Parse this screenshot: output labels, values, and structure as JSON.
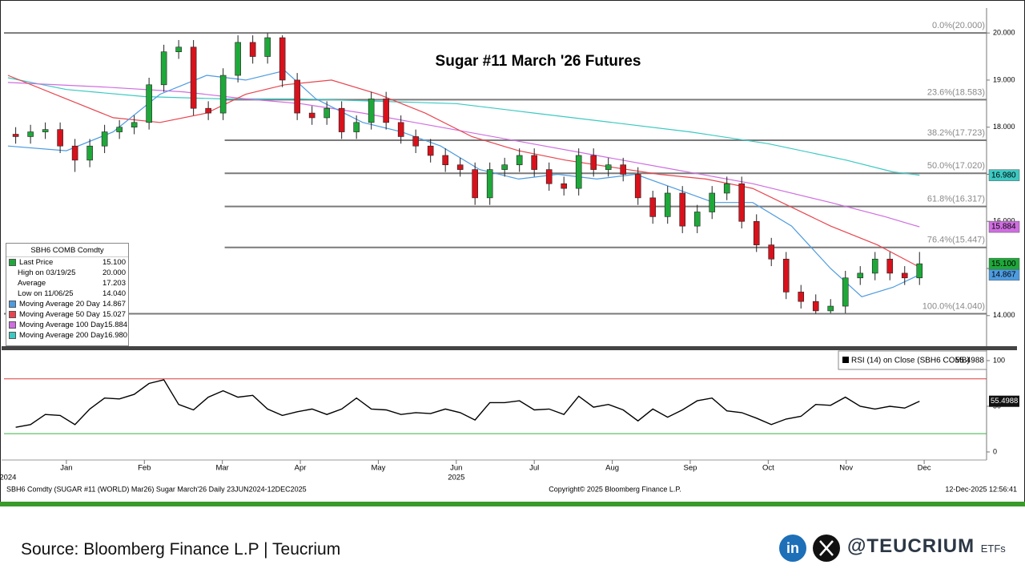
{
  "chart_data": [
    {
      "type": "candlestick",
      "title": "Sugar #11 March '26 Futures",
      "x": [
        0.35,
        0.54,
        0.73,
        0.92,
        1.11,
        1.3,
        1.49,
        1.68,
        1.87,
        2.06,
        2.25,
        2.44,
        2.63,
        2.82,
        3.01,
        3.2,
        3.39,
        3.58,
        3.77,
        3.96,
        4.15,
        4.34,
        4.53,
        4.72,
        4.91,
        5.1,
        5.29,
        5.48,
        5.67,
        5.86,
        6.05,
        6.24,
        6.43,
        6.62,
        6.81,
        7.0,
        7.19,
        7.38,
        7.57,
        7.76,
        7.95,
        8.14,
        8.33,
        8.52,
        8.71,
        8.9,
        9.09,
        9.28,
        9.47,
        9.66,
        9.85,
        10.04,
        10.23,
        10.42,
        10.61,
        10.8,
        10.99,
        11.18,
        11.37,
        11.56,
        11.75,
        11.94
      ],
      "open": [
        17.85,
        17.8,
        17.9,
        17.95,
        17.6,
        17.3,
        17.6,
        17.9,
        18.0,
        18.1,
        18.9,
        19.6,
        19.7,
        18.4,
        18.3,
        19.1,
        19.8,
        19.5,
        19.9,
        19.0,
        18.3,
        18.2,
        18.4,
        17.9,
        18.1,
        18.6,
        18.1,
        17.8,
        17.6,
        17.4,
        17.2,
        17.1,
        16.5,
        17.1,
        17.2,
        17.4,
        17.1,
        16.8,
        16.7,
        17.4,
        17.1,
        17.2,
        17.0,
        16.5,
        16.1,
        16.6,
        15.9,
        16.2,
        16.6,
        16.8,
        16.0,
        15.5,
        15.2,
        14.5,
        14.3,
        14.1,
        14.2,
        14.8,
        14.9,
        15.2,
        14.9,
        14.8
      ],
      "high": [
        18.0,
        18.05,
        18.1,
        18.1,
        17.75,
        17.75,
        18.05,
        18.15,
        18.25,
        19.05,
        19.75,
        19.85,
        19.85,
        18.55,
        19.25,
        19.95,
        19.95,
        20.0,
        19.95,
        19.15,
        18.45,
        18.55,
        18.55,
        18.25,
        18.75,
        18.75,
        18.25,
        17.95,
        17.75,
        17.55,
        17.35,
        17.25,
        17.25,
        17.35,
        17.55,
        17.55,
        17.25,
        16.95,
        17.55,
        17.55,
        17.35,
        17.35,
        17.15,
        16.65,
        16.75,
        16.75,
        16.35,
        16.75,
        16.95,
        16.95,
        16.15,
        15.65,
        15.35,
        14.65,
        14.45,
        14.35,
        14.95,
        15.05,
        15.35,
        15.35,
        15.05,
        15.35
      ],
      "low": [
        17.65,
        17.65,
        17.75,
        17.45,
        17.05,
        17.15,
        17.45,
        17.75,
        17.85,
        17.95,
        18.75,
        19.45,
        18.25,
        18.15,
        18.15,
        18.95,
        19.35,
        19.35,
        18.85,
        18.15,
        18.05,
        18.05,
        17.75,
        17.75,
        17.95,
        17.95,
        17.65,
        17.45,
        17.25,
        17.05,
        16.95,
        16.35,
        16.35,
        16.95,
        17.05,
        16.95,
        16.65,
        16.55,
        16.55,
        16.95,
        16.95,
        16.85,
        16.35,
        15.95,
        15.95,
        15.75,
        15.75,
        16.05,
        16.45,
        15.85,
        15.35,
        15.05,
        14.35,
        14.15,
        14.04,
        14.05,
        14.05,
        14.65,
        14.75,
        14.75,
        14.65,
        14.65
      ],
      "close": [
        17.8,
        17.9,
        17.95,
        17.6,
        17.3,
        17.6,
        17.9,
        18.0,
        18.1,
        18.9,
        19.6,
        19.7,
        18.4,
        18.3,
        19.1,
        19.8,
        19.5,
        19.9,
        19.0,
        18.3,
        18.2,
        18.4,
        17.9,
        18.1,
        18.6,
        18.1,
        17.8,
        17.6,
        17.4,
        17.2,
        17.1,
        16.5,
        17.1,
        17.2,
        17.4,
        17.1,
        16.8,
        16.7,
        17.4,
        17.1,
        17.2,
        17.0,
        16.5,
        16.1,
        16.6,
        15.9,
        16.2,
        16.6,
        16.8,
        16.0,
        15.5,
        15.2,
        14.5,
        14.3,
        14.1,
        14.2,
        14.8,
        14.9,
        15.2,
        14.9,
        14.8,
        15.1
      ],
      "color_up": "#1fa83a",
      "color_down": "#d8121c",
      "last_tag": "15.100",
      "xlim": [
        0.2,
        12.8
      ],
      "xticks": [
        {
          "value": 1,
          "label": "Jan"
        },
        {
          "value": 2,
          "label": "Feb"
        },
        {
          "value": 3,
          "label": "Mar"
        },
        {
          "value": 4,
          "label": "Apr"
        },
        {
          "value": 5,
          "label": "May"
        },
        {
          "value": 6,
          "label": "Jun"
        },
        {
          "value": 7,
          "label": "Jul"
        },
        {
          "value": 8,
          "label": "Aug"
        },
        {
          "value": 9,
          "label": "Sep"
        },
        {
          "value": 10,
          "label": "Oct"
        },
        {
          "value": 11,
          "label": "Nov"
        },
        {
          "value": 12,
          "label": "Dec"
        }
      ],
      "x_year_ticks": [
        {
          "value": 0.25,
          "label": "2024"
        },
        {
          "value": 6,
          "label": "2025"
        }
      ],
      "ylim": [
        13.35,
        20.53
      ],
      "yticks": [
        {
          "value": 14,
          "label": "14.000"
        },
        {
          "value": 15,
          "label": "15.000"
        },
        {
          "value": 16,
          "label": "16.000"
        },
        {
          "value": 17,
          "label": "17.000"
        },
        {
          "value": 18,
          "label": "18.000"
        },
        {
          "value": 19,
          "label": "19.000"
        },
        {
          "value": 20,
          "label": "20.000"
        }
      ],
      "fib_levels": [
        {
          "value": 20.0,
          "label": "0.0%(20.000)"
        },
        {
          "value": 18.583,
          "label": "23.6%(18.583)"
        },
        {
          "value": 17.723,
          "label": "38.2%(17.723)"
        },
        {
          "value": 17.02,
          "label": "50.0%(17.020)"
        },
        {
          "value": 16.317,
          "label": "61.8%(16.317)"
        },
        {
          "value": 15.447,
          "label": "76.4%(15.447)"
        },
        {
          "value": 14.04,
          "label": "100.0%(14.040)"
        }
      ],
      "fib_start": 3.03,
      "overlays": [
        {
          "name": "Moving Average 200 Day",
          "color": "#3cc9c2",
          "tag": "16.980",
          "x": [
            0.25,
            1.0,
            2.0,
            3.0,
            4.0,
            5.0,
            6.0,
            7.0,
            8.0,
            9.0,
            10.0,
            11.0,
            11.6,
            11.94
          ],
          "values": [
            19.05,
            18.8,
            18.65,
            18.6,
            18.6,
            18.55,
            18.5,
            18.3,
            18.1,
            17.9,
            17.65,
            17.3,
            17.05,
            16.98
          ]
        },
        {
          "name": "Moving Average 100 Day",
          "color": "#cf6ee0",
          "tag": "15.884",
          "x": [
            0.25,
            1.5,
            2.5,
            3.3,
            4.0,
            4.8,
            5.8,
            6.8,
            7.8,
            8.8,
            9.8,
            10.8,
            11.5,
            11.94
          ],
          "values": [
            18.95,
            18.85,
            18.75,
            18.6,
            18.5,
            18.3,
            18.0,
            17.7,
            17.4,
            17.1,
            16.8,
            16.4,
            16.1,
            15.884
          ]
        },
        {
          "name": "Moving Average 50 Day",
          "color": "#e8454e",
          "tag": "15.027",
          "x": [
            0.25,
            1.0,
            1.6,
            2.2,
            2.8,
            3.3,
            3.8,
            4.4,
            5.0,
            5.6,
            6.2,
            6.8,
            7.4,
            8.0,
            8.6,
            9.2,
            9.8,
            10.3,
            10.8,
            11.4,
            11.94
          ],
          "values": [
            19.1,
            18.6,
            18.2,
            18.1,
            18.3,
            18.7,
            18.9,
            19.0,
            18.7,
            18.3,
            17.8,
            17.5,
            17.3,
            17.15,
            17.0,
            16.9,
            16.7,
            16.3,
            15.9,
            15.5,
            15.027
          ]
        },
        {
          "name": "Moving Average 20 Day",
          "color": "#4d9be0",
          "tag": "14.867",
          "x": [
            0.25,
            1.0,
            1.6,
            2.2,
            2.8,
            3.3,
            3.8,
            4.2,
            4.8,
            5.3,
            5.8,
            6.3,
            6.8,
            7.3,
            7.8,
            8.3,
            8.8,
            9.3,
            9.8,
            10.3,
            10.8,
            11.2,
            11.6,
            11.94
          ],
          "values": [
            17.6,
            17.5,
            17.9,
            18.7,
            19.1,
            19.0,
            19.2,
            18.6,
            18.1,
            17.9,
            17.6,
            17.1,
            16.9,
            17.0,
            16.9,
            17.0,
            16.7,
            16.4,
            16.4,
            15.9,
            15.0,
            14.4,
            14.6,
            14.867
          ]
        }
      ],
      "legend": {
        "title": "SBH6 COMB Comdty",
        "rows": [
          {
            "label": "Last Price",
            "value": "15.100",
            "color": "#1fa83a"
          },
          {
            "label": "High on 03/19/25",
            "value": "20.000"
          },
          {
            "label": "Average",
            "value": "17.203"
          },
          {
            "label": "Low on 11/06/25",
            "value": "14.040"
          },
          {
            "label": "Moving Average 20 Day",
            "value": "14.867",
            "color": "#4d9be0"
          },
          {
            "label": "Moving Average 50 Day",
            "value": "15.027",
            "color": "#e8454e"
          },
          {
            "label": "Moving Average 100 Day",
            "value": "15.884",
            "color": "#cf6ee0"
          },
          {
            "label": "Moving Average 200 Day",
            "value": "16.980",
            "color": "#3cc9c2"
          }
        ]
      }
    },
    {
      "type": "line",
      "x": [
        0.35,
        0.54,
        0.73,
        0.92,
        1.11,
        1.3,
        1.49,
        1.68,
        1.87,
        2.06,
        2.25,
        2.44,
        2.63,
        2.82,
        3.01,
        3.2,
        3.39,
        3.58,
        3.77,
        3.96,
        4.15,
        4.34,
        4.53,
        4.72,
        4.91,
        5.1,
        5.29,
        5.48,
        5.67,
        5.86,
        6.05,
        6.24,
        6.43,
        6.62,
        6.81,
        7.0,
        7.19,
        7.38,
        7.57,
        7.76,
        7.95,
        8.14,
        8.33,
        8.52,
        8.71,
        8.9,
        9.09,
        9.28,
        9.47,
        9.66,
        9.85,
        10.04,
        10.23,
        10.42,
        10.61,
        10.8,
        10.99,
        11.18,
        11.37,
        11.56,
        11.75,
        11.94
      ],
      "series": [
        {
          "name": "RSI (14)",
          "note": "on Close (SBH6 COMB)",
          "tag": "55.4988",
          "color": "#000000",
          "values": [
            27,
            30,
            41,
            40,
            30,
            47,
            59,
            58,
            63,
            75,
            79,
            52,
            46,
            60,
            67,
            60,
            62,
            47,
            40,
            44,
            47,
            41,
            47,
            59,
            47,
            46,
            41,
            43,
            42,
            47,
            43,
            35,
            54,
            54,
            56,
            46,
            47,
            41,
            61,
            49,
            52,
            46,
            34,
            47,
            38,
            46,
            56,
            59,
            45,
            43,
            37,
            30,
            36,
            39,
            52,
            51,
            60,
            50,
            47,
            50,
            48,
            55.4988
          ]
        }
      ],
      "xlim": [
        0.2,
        12.8
      ],
      "ylim": [
        -8.8,
        110.5
      ],
      "yticks": [
        0,
        50,
        100
      ],
      "reference_lines": [
        {
          "value": 80,
          "color": "#d83a3a"
        },
        {
          "value": 20,
          "color": "#3cb043"
        }
      ]
    }
  ],
  "footer": {
    "left": "SBH6 Comdty (SUGAR #11 (WORLD) Mar26) Sugar March'26 Daily 23JUN2024-12DEC2025",
    "center": "Copyright© 2025 Bloomberg Finance L.P.",
    "right": "12-Dec-2025 12:56:41"
  },
  "source": "Source: Bloomberg Finance L.P | Teucrium",
  "brand": {
    "handle": "@TEUCRIUM",
    "suffix": "ETFs"
  }
}
